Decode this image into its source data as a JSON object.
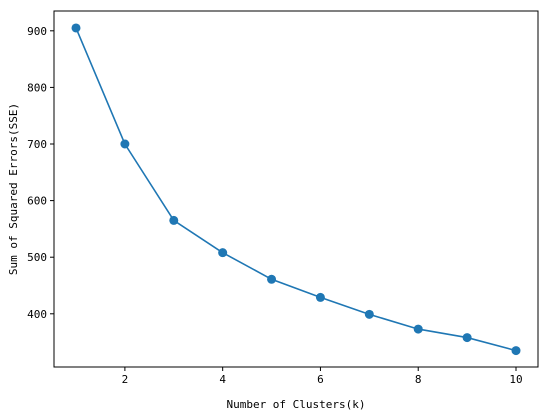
{
  "chart_data": {
    "type": "line",
    "title": "",
    "xlabel": "Number of Clusters(k)",
    "ylabel": "Sum of Squared Errors(SSE)",
    "x": [
      1,
      2,
      3,
      4,
      5,
      6,
      7,
      8,
      9,
      10
    ],
    "series": [
      {
        "values": [
          905,
          700,
          565,
          508,
          461,
          429,
          399,
          373,
          358,
          335
        ]
      }
    ],
    "xlim": [
      0.55,
      10.45
    ],
    "ylim": [
      306,
      935
    ],
    "xticks": [
      2,
      4,
      6,
      8,
      10
    ],
    "yticks": [
      400,
      500,
      600,
      700,
      800,
      900
    ],
    "grid": false,
    "legend": "none",
    "colors": {
      "line": "#1f77b4",
      "marker": "#1f77b4",
      "axes": "#000000"
    }
  }
}
